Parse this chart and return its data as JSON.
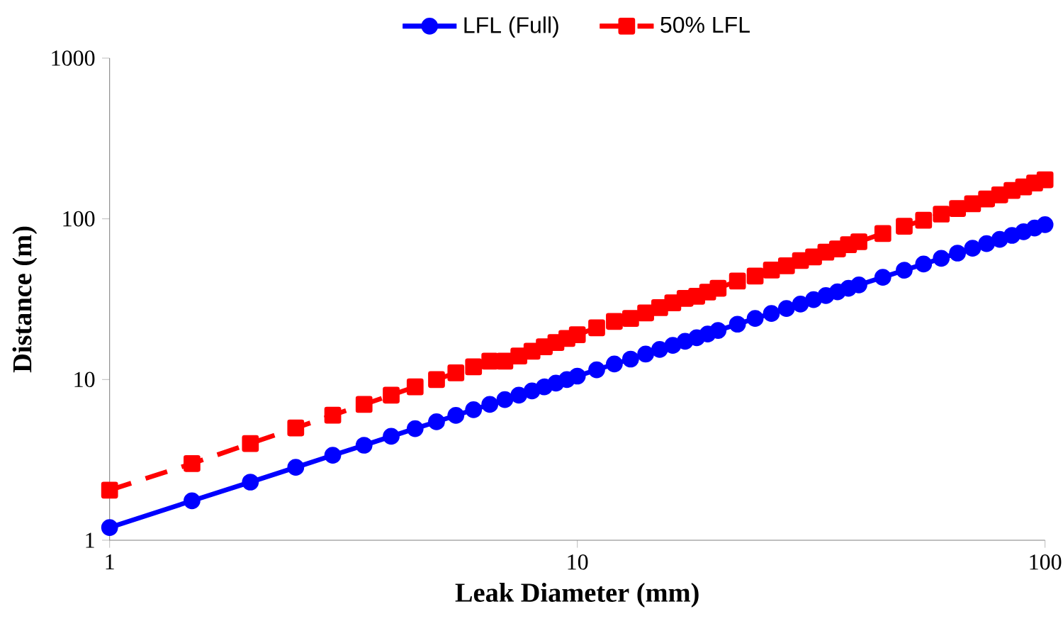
{
  "chart_data": {
    "type": "line",
    "xlabel": "Leak Diameter (mm)",
    "ylabel": "Distance (m)",
    "log": "xy",
    "xlim": [
      1,
      100
    ],
    "ylim": [
      1,
      1000
    ],
    "xticks": [
      1,
      10,
      100
    ],
    "yticks": [
      1,
      10,
      100,
      1000
    ],
    "legend": "top",
    "grid": false,
    "x": [
      1,
      1.5,
      2,
      2.5,
      3,
      3.5,
      4,
      4.5,
      5,
      5.5,
      6,
      6.5,
      7,
      7.5,
      8,
      8.5,
      9,
      9.5,
      10,
      11,
      12,
      13,
      14,
      15,
      16,
      17,
      18,
      19,
      20,
      22,
      24,
      26,
      28,
      30,
      32,
      34,
      36,
      38,
      40,
      45,
      50,
      55,
      60,
      65,
      70,
      75,
      80,
      85,
      90,
      95,
      100
    ],
    "series": [
      {
        "name": "LFL (Full)",
        "color": "#0000ff",
        "marker": "circle",
        "line_style": "solid",
        "values": [
          1.2,
          1.76,
          2.3,
          2.84,
          3.38,
          3.9,
          4.43,
          4.95,
          5.46,
          5.98,
          6.49,
          7.0,
          7.5,
          8.0,
          8.5,
          9.0,
          9.5,
          10.0,
          10.5,
          11.5,
          12.5,
          13.4,
          14.4,
          15.4,
          16.3,
          17.3,
          18.2,
          19.2,
          20.2,
          22.1,
          24.0,
          25.8,
          27.7,
          29.5,
          31.4,
          33.3,
          35.1,
          37.0,
          38.8,
          43.3,
          47.9,
          52.3,
          56.8,
          61.2,
          65.6,
          70.1,
          74.5,
          78.9,
          83.2,
          87.6,
          92
        ]
      },
      {
        "name": "50% LFL",
        "color": "#ff0000",
        "marker": "square",
        "line_style": "dashed",
        "values": [
          2.05,
          3,
          4,
          5,
          6,
          7,
          8,
          9,
          10,
          11,
          12,
          13,
          13,
          14,
          15,
          16,
          17,
          18,
          19,
          21,
          23,
          24,
          26,
          28,
          30,
          32,
          33,
          35,
          37,
          41,
          44,
          48,
          51,
          55,
          58,
          62,
          65,
          69,
          72,
          81,
          90,
          98,
          107,
          116,
          124,
          133,
          141,
          150,
          158,
          167,
          175
        ]
      }
    ]
  }
}
